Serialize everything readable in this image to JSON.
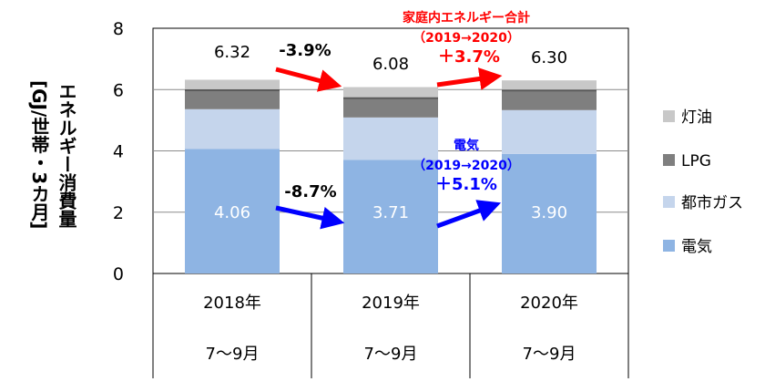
{
  "chart_data": {
    "type": "bar",
    "stacked": true,
    "ylabel": [
      "エネルギー消費量",
      "[GJ/世帯・3カ月]"
    ],
    "ylim": [
      0,
      8
    ],
    "yticks": [
      0,
      2,
      4,
      6,
      8
    ],
    "grid": true,
    "legend_position": "right",
    "categories": [
      {
        "year": "2018年",
        "period": "7〜9月"
      },
      {
        "year": "2019年",
        "period": "7〜9月"
      },
      {
        "year": "2020年",
        "period": "7〜9月"
      }
    ],
    "series": [
      {
        "name": "電気",
        "color": "#8eb4e3",
        "values": [
          4.06,
          3.71,
          3.9
        ]
      },
      {
        "name": "都市ガス",
        "color": "#c5d5ec",
        "values": [
          1.3,
          1.38,
          1.43
        ]
      },
      {
        "name": "LPG",
        "color": "#7f7f7f",
        "values": [
          0.65,
          0.66,
          0.67
        ]
      },
      {
        "name": "灯油",
        "color": "#c8c8c8",
        "values": [
          0.31,
          0.33,
          0.3
        ]
      }
    ],
    "totals": [
      "6.32",
      "6.08",
      "6.30"
    ],
    "electric_labels": [
      "4.06",
      "3.71",
      "3.90"
    ],
    "annotations": {
      "total_change_2019": "-3.9%",
      "electric_change_2019": "-8.7%",
      "total_title": "家庭内エネルギー合計",
      "total_period": "（2019→2020）",
      "total_change_2020": "＋3.7%",
      "electric_title": "電気",
      "electric_period": "（2019→2020）",
      "electric_change_2020": "＋5.1%"
    }
  },
  "colors": {
    "red_arrow": "#ff0000",
    "blue_arrow": "#0000ff",
    "red_text": "#ff0000",
    "blue_text": "#0000ff"
  }
}
